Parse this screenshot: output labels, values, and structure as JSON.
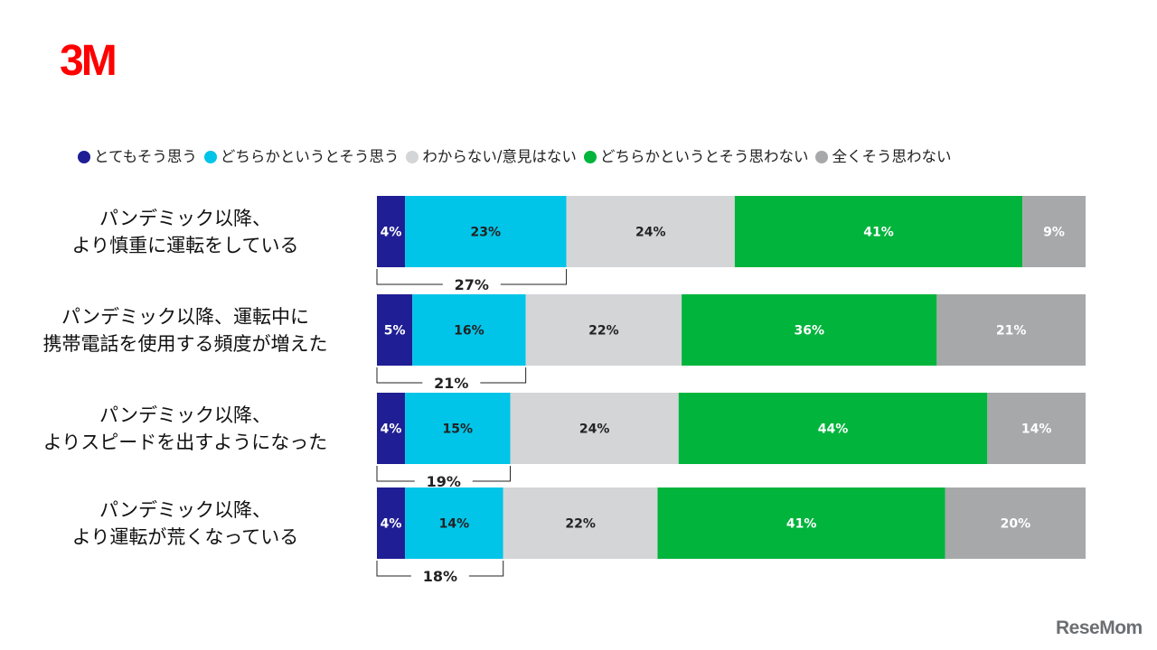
{
  "logo_text": "3M",
  "watermark_text": "ReseMom",
  "chart_data": {
    "type": "bar",
    "orientation": "horizontal",
    "stacked": true,
    "legend_position": "top",
    "categories": [
      "パンデミック以降、\nより慎重に運転をしている",
      "パンデミック以降、運転中に\n携帯電話を使用する頻度が増えた",
      "パンデミック以降、\nよりスピードを出すようになった",
      "パンデミック以降、\nより運転が荒くなっている"
    ],
    "series": [
      {
        "name": "とてもそう思う",
        "color": "#1f1e94",
        "label_color": "#ffffff",
        "values": [
          4,
          5,
          4,
          4
        ]
      },
      {
        "name": "どちらかというとそう思う",
        "color": "#00c4e8",
        "label_color": "#222222",
        "values": [
          23,
          16,
          15,
          14
        ]
      },
      {
        "name": "わからない/意見はない",
        "color": "#d4d5d7",
        "label_color": "#222222",
        "values": [
          24,
          22,
          24,
          22
        ]
      },
      {
        "name": "どちらかというとそう思わない",
        "color": "#00b43c",
        "label_color": "#ffffff",
        "values": [
          41,
          36,
          44,
          41
        ]
      },
      {
        "name": "全くそう思わない",
        "color": "#a7a8aa",
        "label_color": "#ffffff",
        "values": [
          9,
          21,
          14,
          20
        ]
      }
    ],
    "bracket_totals": [
      "27%",
      "21%",
      "19%",
      "18%"
    ],
    "value_suffix": "%"
  }
}
